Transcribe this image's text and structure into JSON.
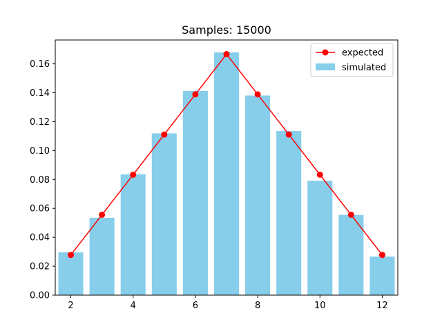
{
  "chart_data": {
    "type": "bar",
    "title": "Samples: 15000",
    "xlabel": "",
    "ylabel": "",
    "xlim": [
      1.5,
      12.5
    ],
    "ylim": [
      0.0,
      0.1765
    ],
    "x_ticks": [
      2,
      4,
      6,
      8,
      10,
      12
    ],
    "y_ticks": [
      0.0,
      0.02,
      0.04,
      0.06,
      0.08,
      0.1,
      0.12,
      0.14,
      0.16
    ],
    "y_tick_labels": [
      "0.00",
      "0.02",
      "0.04",
      "0.06",
      "0.08",
      "0.10",
      "0.12",
      "0.14",
      "0.16"
    ],
    "x": [
      2,
      3,
      4,
      5,
      6,
      7,
      8,
      9,
      10,
      11,
      12
    ],
    "series": [
      {
        "name": "simulated",
        "type": "bar",
        "color": "#87ceeb",
        "values": [
          0.0296,
          0.0535,
          0.0836,
          0.1119,
          0.1412,
          0.1679,
          0.1381,
          0.1135,
          0.0792,
          0.0555,
          0.0267
        ]
      },
      {
        "name": "expected",
        "type": "line",
        "color": "#ff0000",
        "values": [
          0.0278,
          0.0556,
          0.0833,
          0.1111,
          0.1389,
          0.1667,
          0.1389,
          0.1111,
          0.0833,
          0.0556,
          0.0278
        ]
      }
    ],
    "legend": {
      "position": "top-right",
      "entries": [
        "expected",
        "simulated"
      ]
    },
    "grid": false
  }
}
